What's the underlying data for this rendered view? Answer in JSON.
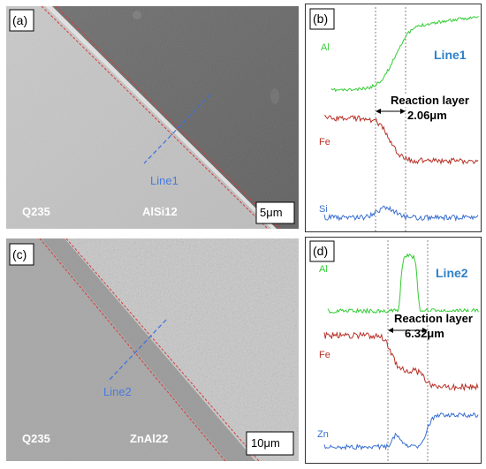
{
  "panels": {
    "a": {
      "letter": "(a)",
      "left_material": "Q235",
      "right_material": "AlSi12",
      "line_label": "Line1",
      "scale_bar": "5μm"
    },
    "b": {
      "letter": "(b)",
      "line_title": "Line1",
      "elements": [
        "Al",
        "Fe",
        "Si"
      ],
      "annotation_title": "Reaction layer",
      "annotation_value": "2.06μm",
      "colors": {
        "Al": "#33cc33",
        "Fe": "#b83228",
        "Si": "#3a6fd0",
        "title": "#2f80c8"
      }
    },
    "c": {
      "letter": "(c)",
      "left_material": "Q235",
      "right_material": "ZnAl22",
      "line_label": "Line2",
      "scale_bar": "10μm"
    },
    "d": {
      "letter": "(d)",
      "line_title": "Line2",
      "elements": [
        "Al",
        "Fe",
        "Zn"
      ],
      "annotation_title": "Reaction layer",
      "annotation_value": "6.32μm",
      "colors": {
        "Al": "#33cc33",
        "Fe": "#b83228",
        "Zn": "#3a6fd0",
        "title": "#2f80c8"
      }
    }
  }
}
